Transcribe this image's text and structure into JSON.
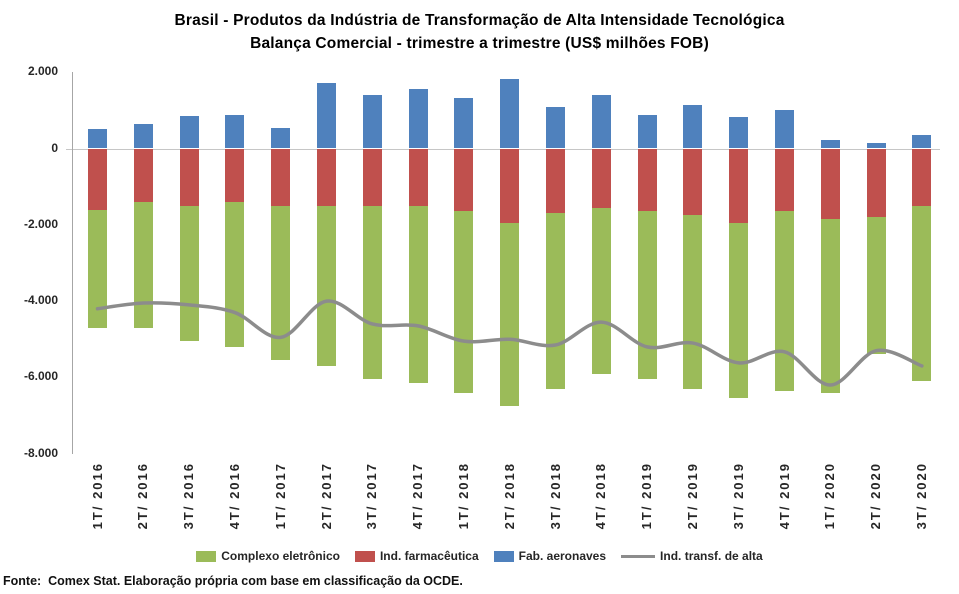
{
  "title": {
    "line1": "Brasil - Produtos da Indústria de Transformação de Alta Intensidade Tecnológica",
    "line2": "Balança Comercial - trimestre a trimestre (US$ milhões FOB)"
  },
  "footer": "Fonte:  Comex Stat. Elaboração própria com base em classificação da OCDE.",
  "colors": {
    "complexo_eletronico": "#9BBB59",
    "ind_farmaceutica": "#C0504D",
    "fab_aeronaves": "#4F81BD",
    "ind_transf_alta_line": "#8C8C8C",
    "zero_gridline": "#C6C6C6",
    "axis_line": "#A6A6A6",
    "text": "#262626"
  },
  "legend": [
    {
      "label": "Complexo eletrônico",
      "marker": "box",
      "color": "#9BBB59"
    },
    {
      "label": "Ind. farmacêutica",
      "marker": "box",
      "color": "#C0504D"
    },
    {
      "label": "Fab. aeronaves",
      "marker": "box",
      "color": "#4F81BD"
    },
    {
      "label": "Ind. transf. de alta",
      "marker": "line",
      "color": "#8C8C8C"
    }
  ],
  "chart_data": {
    "type": "bar",
    "subtype": "stacked-bars-with-line-overlay",
    "title": "Brasil - Produtos da Indústria de Transformação de Alta Intensidade Tecnológica — Balança Comercial - trimestre a trimestre (US$ milhões FOB)",
    "xlabel": "",
    "ylabel": "",
    "ylim": [
      -8000,
      2000
    ],
    "yticks": [
      2000,
      0,
      -2000,
      -4000,
      -6000,
      -8000
    ],
    "ytick_labels": [
      "2.000",
      "0",
      "-2.000",
      "-4.000",
      "-6.000",
      "-8.000"
    ],
    "grid": "zero-line-only",
    "legend_position": "bottom",
    "categories": [
      "1T/ 2016",
      "2T/ 2016",
      "3T/ 2016",
      "4T/ 2016",
      "1T/ 2017",
      "2T/ 2017",
      "3T/ 2017",
      "4T/ 2017",
      "1T/ 2018",
      "2T/ 2018",
      "3T/ 2018",
      "4T/ 2018",
      "1T/ 2019",
      "2T/ 2019",
      "3T/ 2019",
      "4T/ 2019",
      "1T/ 2020",
      "2T/ 2020",
      "3T/ 2020"
    ],
    "series": [
      {
        "name": "Complexo eletrônico",
        "type": "bar",
        "color": "#9BBB59",
        "values": [
          -3100,
          -3300,
          -3550,
          -3800,
          -4050,
          -4200,
          -4550,
          -4650,
          -4750,
          -4800,
          -4600,
          -4350,
          -4400,
          -4550,
          -4600,
          -4700,
          -4550,
          -3600,
          -4600
        ]
      },
      {
        "name": "Ind. farmacêutica",
        "type": "bar",
        "color": "#C0504D",
        "values": [
          -1600,
          -1400,
          -1500,
          -1400,
          -1500,
          -1500,
          -1500,
          -1500,
          -1650,
          -1950,
          -1700,
          -1550,
          -1650,
          -1750,
          -1950,
          -1650,
          -1850,
          -1800,
          -1500
        ]
      },
      {
        "name": "Fab. aeronaves",
        "type": "bar",
        "color": "#4F81BD",
        "values": [
          500,
          650,
          850,
          880,
          530,
          1720,
          1400,
          1570,
          1330,
          1820,
          1100,
          1400,
          880,
          1150,
          830,
          1000,
          220,
          140,
          350
        ]
      },
      {
        "name": "Ind. transf. de alta",
        "type": "line",
        "color": "#8C8C8C",
        "values": [
          -4200,
          -4050,
          -4100,
          -4300,
          -4950,
          -4000,
          -4600,
          -4650,
          -5050,
          -5000,
          -5150,
          -4550,
          -5200,
          -5100,
          -5620,
          -5330,
          -6200,
          -5300,
          -5700
        ]
      }
    ],
    "positive_stack": [
      2
    ],
    "negative_stack": [
      1,
      0
    ]
  }
}
